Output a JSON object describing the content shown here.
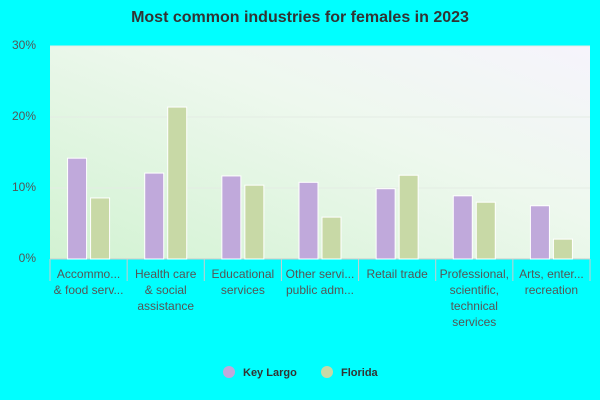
{
  "chart_data": {
    "type": "bar",
    "title": "Most common industries for females in 2023",
    "categories": [
      [
        "Accommo...",
        "& food serv..."
      ],
      [
        "Health care",
        "& social",
        "assistance"
      ],
      [
        "Educational",
        "services"
      ],
      [
        "Other servi...",
        "public adm..."
      ],
      [
        "Retail trade"
      ],
      [
        "Professional,",
        "scientific,",
        "technical",
        "services"
      ],
      [
        "Arts, enter...",
        "recreation"
      ]
    ],
    "series": [
      {
        "name": "Key Largo",
        "color": "#c0a9db",
        "values": [
          14.2,
          12.1,
          11.7,
          10.8,
          9.9,
          8.9,
          7.5
        ]
      },
      {
        "name": "Florida",
        "color": "#c8d9a6",
        "values": [
          8.6,
          21.4,
          10.4,
          5.9,
          11.8,
          8.0,
          2.8
        ]
      }
    ],
    "ylim": [
      0,
      30
    ],
    "yticks": [
      {
        "value": 0,
        "label": "0%"
      },
      {
        "value": 10,
        "label": "10%"
      },
      {
        "value": 20,
        "label": "20%"
      },
      {
        "value": 30,
        "label": "30%"
      }
    ],
    "grid": true
  }
}
